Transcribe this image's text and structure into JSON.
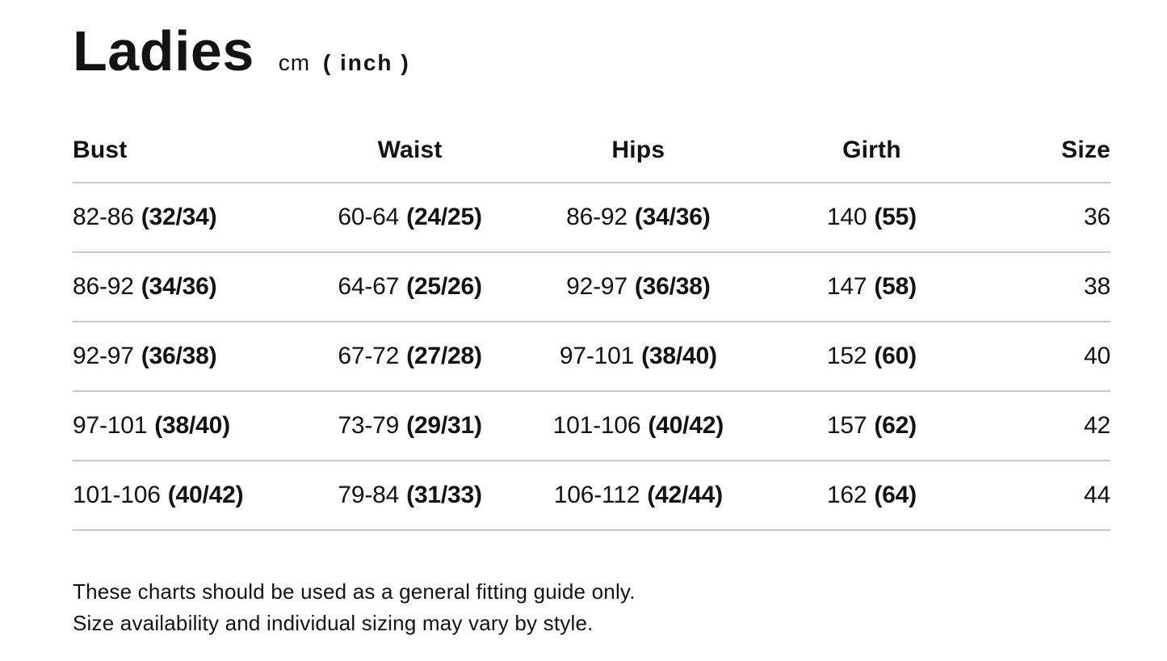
{
  "page": {
    "title": "Ladies",
    "unit_prefix": "cm",
    "unit_suffix": "( inch )"
  },
  "table": {
    "headers": {
      "bust": "Bust",
      "waist": "Waist",
      "hips": "Hips",
      "girth": "Girth",
      "size": "Size"
    },
    "rows": [
      {
        "bust": {
          "cm": "82-86",
          "inch": "(32/34)"
        },
        "waist": {
          "cm": "60-64",
          "inch": "(24/25)"
        },
        "hips": {
          "cm": "86-92",
          "inch": "(34/36)"
        },
        "girth": {
          "cm": "140",
          "inch": "(55)"
        },
        "size": "36"
      },
      {
        "bust": {
          "cm": "86-92",
          "inch": "(34/36)"
        },
        "waist": {
          "cm": "64-67",
          "inch": "(25/26)"
        },
        "hips": {
          "cm": "92-97",
          "inch": "(36/38)"
        },
        "girth": {
          "cm": "147",
          "inch": "(58)"
        },
        "size": "38"
      },
      {
        "bust": {
          "cm": "92-97",
          "inch": "(36/38)"
        },
        "waist": {
          "cm": "67-72",
          "inch": "(27/28)"
        },
        "hips": {
          "cm": "97-101",
          "inch": "(38/40)"
        },
        "girth": {
          "cm": "152",
          "inch": "(60)"
        },
        "size": "40"
      },
      {
        "bust": {
          "cm": "97-101",
          "inch": "(38/40)"
        },
        "waist": {
          "cm": "73-79",
          "inch": "(29/31)"
        },
        "hips": {
          "cm": "101-106",
          "inch": "(40/42)"
        },
        "girth": {
          "cm": "157",
          "inch": "(62)"
        },
        "size": "42"
      },
      {
        "bust": {
          "cm": "101-106",
          "inch": "(40/42)"
        },
        "waist": {
          "cm": "79-84",
          "inch": "(31/33)"
        },
        "hips": {
          "cm": "106-112",
          "inch": "(42/44)"
        },
        "girth": {
          "cm": "162",
          "inch": "(64)"
        },
        "size": "44"
      }
    ]
  },
  "footnote": {
    "line1": "These charts should be used as a general fitting guide only.",
    "line2": "Size availability and individual sizing may vary by style."
  },
  "colors": {
    "text": "#131313",
    "divider": "#c9c9c9",
    "background": "#ffffff"
  }
}
